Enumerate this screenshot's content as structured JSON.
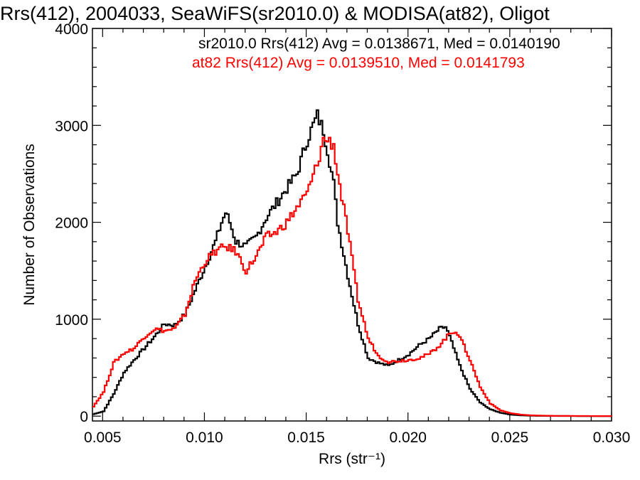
{
  "chart_data": {
    "type": "line",
    "title": "Rrs(412), 2004033, SeaWiFS(sr2010.0) & MODISA(at82), Oligot",
    "xlabel": "Rrs (str⁻¹)",
    "ylabel": "Number of Observations",
    "xlim": [
      0.0045,
      0.03
    ],
    "ylim": [
      -50,
      4000
    ],
    "x_ticks": [
      0.005,
      0.01,
      0.015,
      0.02,
      0.025,
      0.03
    ],
    "x_tick_labels": [
      "0.005",
      "0.010",
      "0.015",
      "0.020",
      "0.025",
      "0.030"
    ],
    "y_ticks": [
      0,
      1000,
      2000,
      3000,
      4000
    ],
    "y_tick_labels": [
      "0",
      "1000",
      "2000",
      "3000",
      "4000"
    ],
    "grid": false,
    "annotations": [
      {
        "text": "sr2010.0 Rrs(412) Avg = 0.0138671, Med = 0.0140190",
        "color": "#000000"
      },
      {
        "text": "at82 Rrs(412) Avg = 0.0139510, Med = 0.0141793",
        "color": "#ff0000"
      }
    ],
    "series": [
      {
        "color": "#000000",
        "x": [
          0.0045,
          0.005,
          0.0055,
          0.006,
          0.0065,
          0.007,
          0.0075,
          0.008,
          0.0085,
          0.009,
          0.0095,
          0.01,
          0.0105,
          0.0108,
          0.011,
          0.0112,
          0.0115,
          0.012,
          0.0125,
          0.013,
          0.0135,
          0.014,
          0.0145,
          0.015,
          0.0153,
          0.0155,
          0.0158,
          0.016,
          0.0163,
          0.0165,
          0.017,
          0.0175,
          0.018,
          0.0185,
          0.019,
          0.0195,
          0.02,
          0.0205,
          0.021,
          0.0215,
          0.0218,
          0.022,
          0.0225,
          0.023,
          0.0235,
          0.024,
          0.0245,
          0.025,
          0.0255,
          0.026,
          0.027,
          0.028,
          0.029,
          0.03
        ],
        "values": [
          20,
          50,
          230,
          450,
          580,
          700,
          820,
          950,
          940,
          1050,
          1300,
          1550,
          1800,
          2000,
          2100,
          2000,
          1800,
          1750,
          1850,
          2050,
          2200,
          2350,
          2500,
          2850,
          3000,
          3100,
          2950,
          2750,
          2400,
          2000,
          1450,
          950,
          600,
          550,
          520,
          580,
          640,
          730,
          800,
          900,
          920,
          820,
          520,
          280,
          140,
          70,
          35,
          15,
          8,
          4,
          2,
          1,
          0,
          0
        ]
      },
      {
        "color": "#ff0000",
        "x": [
          0.0045,
          0.005,
          0.0055,
          0.006,
          0.0065,
          0.007,
          0.0075,
          0.008,
          0.0085,
          0.009,
          0.0095,
          0.01,
          0.0105,
          0.011,
          0.0115,
          0.012,
          0.0125,
          0.013,
          0.0135,
          0.014,
          0.0145,
          0.015,
          0.0155,
          0.0158,
          0.016,
          0.0163,
          0.0165,
          0.017,
          0.0175,
          0.018,
          0.0185,
          0.019,
          0.0195,
          0.02,
          0.0205,
          0.021,
          0.0215,
          0.022,
          0.0223,
          0.0225,
          0.023,
          0.0235,
          0.024,
          0.0245,
          0.025,
          0.0255,
          0.026,
          0.027,
          0.028,
          0.029,
          0.03
        ],
        "values": [
          100,
          250,
          550,
          650,
          700,
          820,
          900,
          880,
          900,
          1050,
          1400,
          1600,
          1700,
          1750,
          1700,
          1500,
          1650,
          1850,
          1900,
          2000,
          2150,
          2300,
          2600,
          2850,
          2850,
          2800,
          2500,
          1900,
          1200,
          800,
          620,
          560,
          570,
          580,
          600,
          640,
          730,
          850,
          880,
          820,
          580,
          300,
          130,
          60,
          30,
          15,
          8,
          3,
          2,
          1,
          0
        ]
      }
    ]
  }
}
